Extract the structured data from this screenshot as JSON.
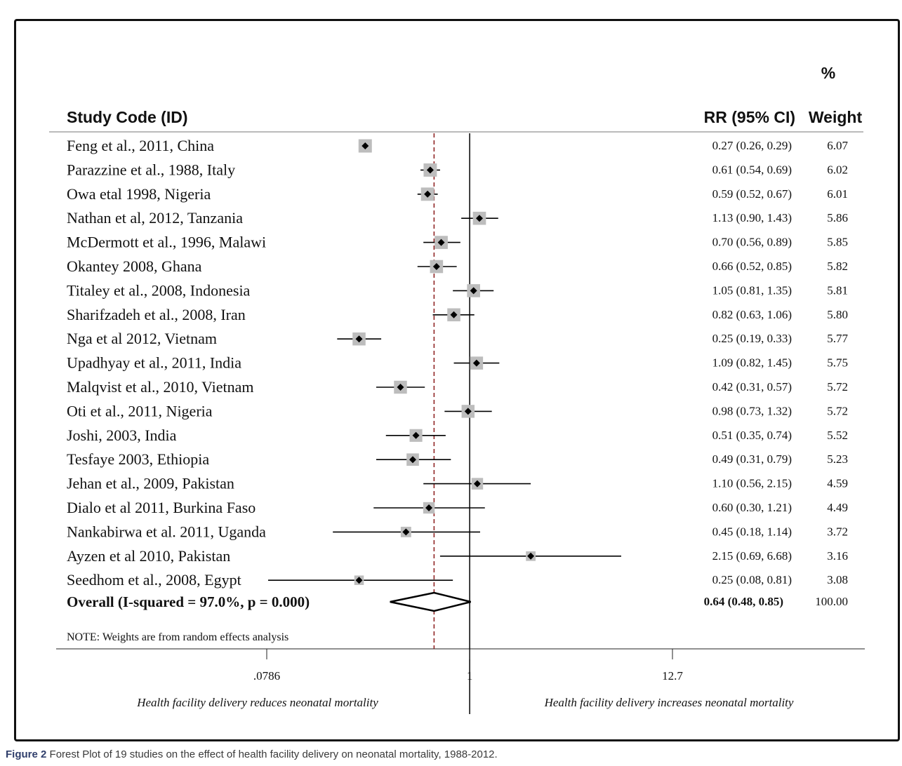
{
  "chart_data": {
    "type": "forest",
    "headers": {
      "study": "Study Code (ID)",
      "rr": "RR (95% CI)",
      "weight_pct": "%",
      "weight": "Weight"
    },
    "studies": [
      {
        "label": "Feng et al., 2011, China",
        "rr": 0.27,
        "lo": 0.26,
        "hi": 0.29,
        "rr_text": "0.27 (0.26, 0.29)",
        "weight": "6.07"
      },
      {
        "label": "Parazzine et al., 1988, Italy",
        "rr": 0.61,
        "lo": 0.54,
        "hi": 0.69,
        "rr_text": "0.61 (0.54, 0.69)",
        "weight": "6.02"
      },
      {
        "label": "Owa etal 1998, Nigeria",
        "rr": 0.59,
        "lo": 0.52,
        "hi": 0.67,
        "rr_text": "0.59 (0.52, 0.67)",
        "weight": "6.01"
      },
      {
        "label": "Nathan et al, 2012, Tanzania",
        "rr": 1.13,
        "lo": 0.9,
        "hi": 1.43,
        "rr_text": "1.13 (0.90, 1.43)",
        "weight": "5.86"
      },
      {
        "label": "McDermott et al., 1996, Malawi",
        "rr": 0.7,
        "lo": 0.56,
        "hi": 0.89,
        "rr_text": "0.70 (0.56, 0.89)",
        "weight": "5.85"
      },
      {
        "label": "Okantey 2008, Ghana",
        "rr": 0.66,
        "lo": 0.52,
        "hi": 0.85,
        "rr_text": "0.66 (0.52, 0.85)",
        "weight": "5.82"
      },
      {
        "label": "Titaley et al., 2008, Indonesia",
        "rr": 1.05,
        "lo": 0.81,
        "hi": 1.35,
        "rr_text": "1.05 (0.81, 1.35)",
        "weight": "5.81"
      },
      {
        "label": "Sharifzadeh et al., 2008, Iran",
        "rr": 0.82,
        "lo": 0.63,
        "hi": 1.06,
        "rr_text": "0.82 (0.63, 1.06)",
        "weight": "5.80"
      },
      {
        "label": "Nga et al 2012, Vietnam",
        "rr": 0.25,
        "lo": 0.19,
        "hi": 0.33,
        "rr_text": "0.25 (0.19, 0.33)",
        "weight": "5.77"
      },
      {
        "label": "Upadhyay et al., 2011, India",
        "rr": 1.09,
        "lo": 0.82,
        "hi": 1.45,
        "rr_text": "1.09 (0.82, 1.45)",
        "weight": "5.75"
      },
      {
        "label": "Malqvist et al., 2010, Vietnam",
        "rr": 0.42,
        "lo": 0.31,
        "hi": 0.57,
        "rr_text": "0.42 (0.31, 0.57)",
        "weight": "5.72"
      },
      {
        "label": "Oti et al., 2011, Nigeria",
        "rr": 0.98,
        "lo": 0.73,
        "hi": 1.32,
        "rr_text": "0.98 (0.73, 1.32)",
        "weight": "5.72"
      },
      {
        "label": "Joshi, 2003, India",
        "rr": 0.51,
        "lo": 0.35,
        "hi": 0.74,
        "rr_text": "0.51 (0.35, 0.74)",
        "weight": "5.52"
      },
      {
        "label": "Tesfaye 2003, Ethiopia",
        "rr": 0.49,
        "lo": 0.31,
        "hi": 0.79,
        "rr_text": "0.49 (0.31, 0.79)",
        "weight": "5.23"
      },
      {
        "label": "Jehan et al., 2009, Pakistan",
        "rr": 1.1,
        "lo": 0.56,
        "hi": 2.15,
        "rr_text": "1.10 (0.56, 2.15)",
        "weight": "4.59"
      },
      {
        "label": "Dialo et al  2011, Burkina Faso",
        "rr": 0.6,
        "lo": 0.3,
        "hi": 1.21,
        "rr_text": "0.60 (0.30, 1.21)",
        "weight": "4.49"
      },
      {
        "label": "Nankabirwa et al. 2011, Uganda",
        "rr": 0.45,
        "lo": 0.18,
        "hi": 1.14,
        "rr_text": "0.45 (0.18, 1.14)",
        "weight": "3.72"
      },
      {
        "label": "Ayzen et al 2010, Pakistan",
        "rr": 2.15,
        "lo": 0.69,
        "hi": 6.68,
        "rr_text": "2.15 (0.69, 6.68)",
        "weight": "3.16"
      },
      {
        "label": "Seedhom et al., 2008, Egypt",
        "rr": 0.25,
        "lo": 0.08,
        "hi": 0.81,
        "rr_text": "0.25 (0.08, 0.81)",
        "weight": "3.08"
      }
    ],
    "overall": {
      "label": "Overall  (I-squared = 97.0%, p = 0.000)",
      "rr": 0.64,
      "lo": 0.48,
      "hi": 0.85,
      "rr_text": "0.64 (0.48, 0.85)",
      "weight": "100.00"
    },
    "note": "NOTE: Weights are from random effects analysis",
    "x_axis": {
      "scale": "log",
      "ticks": [
        0.0786,
        1,
        12.7
      ],
      "tick_labels": [
        ".0786",
        "1",
        "12.7"
      ]
    },
    "null_line": 1,
    "pooled_line": 0.64,
    "favours_left": "Health facility delivery reduces neonatal mortality",
    "favours_right": "Health facility delivery increases neonatal mortality",
    "colors": {
      "marker": "#bdbdbd",
      "line": "#000000",
      "pooled_line": "#8b1a1a"
    }
  },
  "caption": {
    "label": "Figure 2",
    "text": "Forest Plot of 19 studies on the effect of health facility delivery on neonatal mortality, 1988-2012."
  }
}
